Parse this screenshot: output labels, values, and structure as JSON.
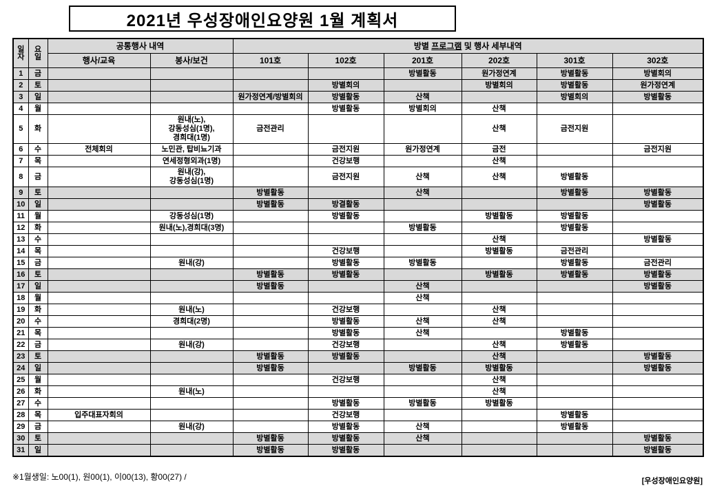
{
  "title": "2021년  우성장애인요양원 1월 계획서",
  "colors": {
    "header_bg": "#d9d9d9",
    "weekend_row_bg": "#d9d9d9",
    "border": "#000000"
  },
  "table": {
    "headers": {
      "date": "일\n자",
      "dow": "요\n일",
      "common_group": "공통행사 내역",
      "room_group_prefix": "방별 ",
      "room_group_underlined": "프로그램",
      "room_group_suffix": " 및 행사 세부내역",
      "sub": [
        "행사/교육",
        "봉사/보건",
        "101호",
        "102호",
        "201호",
        "202호",
        "301호",
        "302호"
      ]
    },
    "rows": [
      {
        "d": "1",
        "w": "금",
        "shaded": true,
        "cells": [
          "",
          "",
          "",
          "",
          "방별활동",
          "원가정연계",
          "방별활동",
          "방별회의"
        ]
      },
      {
        "d": "2",
        "w": "토",
        "shaded": true,
        "cells": [
          "",
          "",
          "",
          "방별회의",
          "",
          "방별회의",
          "방별활동",
          "원가정연계"
        ]
      },
      {
        "d": "3",
        "w": "일",
        "shaded": true,
        "cells": [
          "",
          "",
          "원가정연계/방별회의",
          "방별활동",
          "산책",
          "",
          "방별회의",
          "방별활동"
        ]
      },
      {
        "d": "4",
        "w": "월",
        "shaded": false,
        "cells": [
          "",
          "",
          "",
          "방별활동",
          "방별회의",
          "산책",
          "",
          ""
        ]
      },
      {
        "d": "5",
        "w": "화",
        "shaded": false,
        "cells": [
          "",
          "원내(노),\n강동성심(1명),\n경희대(1명)",
          "금전관리",
          "",
          "",
          "산책",
          "금전지원",
          ""
        ]
      },
      {
        "d": "6",
        "w": "수",
        "shaded": false,
        "cells": [
          "전체회의",
          "노민관, 탑비뇨기과",
          "",
          "금전지원",
          "원가정연계",
          "금전",
          "",
          "금전지원"
        ]
      },
      {
        "d": "7",
        "w": "목",
        "shaded": false,
        "cells": [
          "",
          "연세정형외과(1명)",
          "",
          "건강보행",
          "",
          "산책",
          "",
          ""
        ]
      },
      {
        "d": "8",
        "w": "금",
        "shaded": false,
        "cells": [
          "",
          "원내(강),\n강동성심(1명)",
          "",
          "금전지원",
          "산책",
          "산책",
          "방별활동",
          ""
        ]
      },
      {
        "d": "9",
        "w": "토",
        "shaded": true,
        "cells": [
          "",
          "",
          "방별활동",
          "",
          "산책",
          "",
          "방별활동",
          "방별활동"
        ]
      },
      {
        "d": "10",
        "w": "일",
        "shaded": true,
        "cells": [
          "",
          "",
          "방별활동",
          "방결활동",
          "",
          "",
          "",
          "방별활동"
        ]
      },
      {
        "d": "11",
        "w": "월",
        "shaded": false,
        "cells": [
          "",
          "강동성심(1명)",
          "",
          "방별활동",
          "",
          "방별활동",
          "방별활동",
          ""
        ]
      },
      {
        "d": "12",
        "w": "화",
        "shaded": false,
        "cells": [
          "",
          "원내(노),경희대(3명)",
          "",
          "",
          "방별활동",
          "",
          "방별활동",
          ""
        ]
      },
      {
        "d": "13",
        "w": "수",
        "shaded": false,
        "cells": [
          "",
          "",
          "",
          "",
          "",
          "산책",
          "",
          "방별활동"
        ]
      },
      {
        "d": "14",
        "w": "목",
        "shaded": false,
        "cells": [
          "",
          "",
          "",
          "건강보행",
          "",
          "방별활동",
          "금전관리",
          ""
        ]
      },
      {
        "d": "15",
        "w": "금",
        "shaded": false,
        "cells": [
          "",
          "원내(강)",
          "",
          "방별활동",
          "방별활동",
          "",
          "방별활동",
          "금전관리"
        ]
      },
      {
        "d": "16",
        "w": "토",
        "shaded": true,
        "cells": [
          "",
          "",
          "방별활동",
          "방별활동",
          "",
          "방별활동",
          "방별활동",
          "방별활동"
        ]
      },
      {
        "d": "17",
        "w": "일",
        "shaded": true,
        "cells": [
          "",
          "",
          "방별활동",
          "",
          "산책",
          "",
          "",
          "방별활동"
        ]
      },
      {
        "d": "18",
        "w": "월",
        "shaded": false,
        "cells": [
          "",
          "",
          "",
          "",
          "산책",
          "",
          "",
          ""
        ]
      },
      {
        "d": "19",
        "w": "화",
        "shaded": false,
        "cells": [
          "",
          "원내(노)",
          "",
          "건강보행",
          "",
          "산책",
          "",
          ""
        ]
      },
      {
        "d": "20",
        "w": "수",
        "shaded": false,
        "cells": [
          "",
          "경희대(2명)",
          "",
          "방별활동",
          "산책",
          "산책",
          "",
          ""
        ]
      },
      {
        "d": "21",
        "w": "목",
        "shaded": false,
        "cells": [
          "",
          "",
          "",
          "방별활동",
          "산책",
          "",
          "방별활동",
          ""
        ]
      },
      {
        "d": "22",
        "w": "금",
        "shaded": false,
        "cells": [
          "",
          "원내(강)",
          "",
          "건강보행",
          "",
          "산책",
          "방별활동",
          ""
        ]
      },
      {
        "d": "23",
        "w": "토",
        "shaded": true,
        "cells": [
          "",
          "",
          "방별활동",
          "방별활동",
          "",
          "산책",
          "",
          "방별활동"
        ]
      },
      {
        "d": "24",
        "w": "일",
        "shaded": true,
        "cells": [
          "",
          "",
          "방별활동",
          "",
          "방별활동",
          "방별활동",
          "",
          "방별활동"
        ]
      },
      {
        "d": "25",
        "w": "월",
        "shaded": false,
        "cells": [
          "",
          "",
          "",
          "건강보행",
          "",
          "산책",
          "",
          ""
        ]
      },
      {
        "d": "26",
        "w": "화",
        "shaded": false,
        "cells": [
          "",
          "원내(노)",
          "",
          "",
          "",
          "산책",
          "",
          ""
        ]
      },
      {
        "d": "27",
        "w": "수",
        "shaded": false,
        "cells": [
          "",
          "",
          "",
          "방별활동",
          "방별활동",
          "방별활동",
          "",
          ""
        ]
      },
      {
        "d": "28",
        "w": "목",
        "shaded": false,
        "cells": [
          "입주대표자회의",
          "",
          "",
          "건강보행",
          "",
          "",
          "방별활동",
          ""
        ]
      },
      {
        "d": "29",
        "w": "금",
        "shaded": false,
        "cells": [
          "",
          "원내(강)",
          "",
          "방별활동",
          "산책",
          "",
          "방별활동",
          ""
        ]
      },
      {
        "d": "30",
        "w": "토",
        "shaded": true,
        "cells": [
          "",
          "",
          "방별활동",
          "방별활동",
          "산책",
          "",
          "",
          "방별활동"
        ]
      },
      {
        "d": "31",
        "w": "일",
        "shaded": true,
        "cells": [
          "",
          "",
          "방별활동",
          "방별활동",
          "",
          "",
          "",
          "방별활동"
        ]
      }
    ]
  },
  "footer": {
    "birthday_note": "※1월생일: 노00(1), 원00(1), 이00(13), 황00(27)  /",
    "org_label": "[우성장애인요양원]"
  }
}
